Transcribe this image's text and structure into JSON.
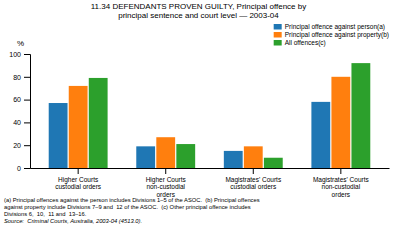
{
  "chart_data": {
    "type": "bar",
    "title": "11.34 DEFENDANTS PROVEN GUILTY, Principal offence by\nprincipal sentence and court level — 2003-04",
    "categories": [
      "Higher Courts\ncustodial orders",
      "Higher Courts\nnon-custodial\norders",
      "Magistrates' Courts\ncustodial orders",
      "Magistrates' Courts\nnon-custodial\norders"
    ],
    "series": [
      {
        "name": "Principal offence against person(a)",
        "values": [
          57,
          19,
          15,
          58
        ]
      },
      {
        "name": "Principal offence against property(b)",
        "values": [
          72,
          27,
          19,
          80
        ]
      },
      {
        "name": "All offences(c)",
        "values": [
          79,
          21,
          9,
          92
        ]
      }
    ],
    "y_label": "%",
    "ylim": [
      0,
      100
    ],
    "yticks": [
      0,
      20,
      40,
      60,
      80,
      100
    ],
    "grid": false,
    "legend": "upper right",
    "annotations": [
      "(a) Principal offences against the person includes Divisions 1–5 of the ASOC.  (b) Principal offences",
      "against property include Divisions 7–9 and  12 of the ASOC.  (c) Other principal offence includes",
      "Divisions 6,  10,  11 and  13–16.",
      "Source:  Criminal Courts, Australia, 2003-04 (4513.0)."
    ]
  }
}
